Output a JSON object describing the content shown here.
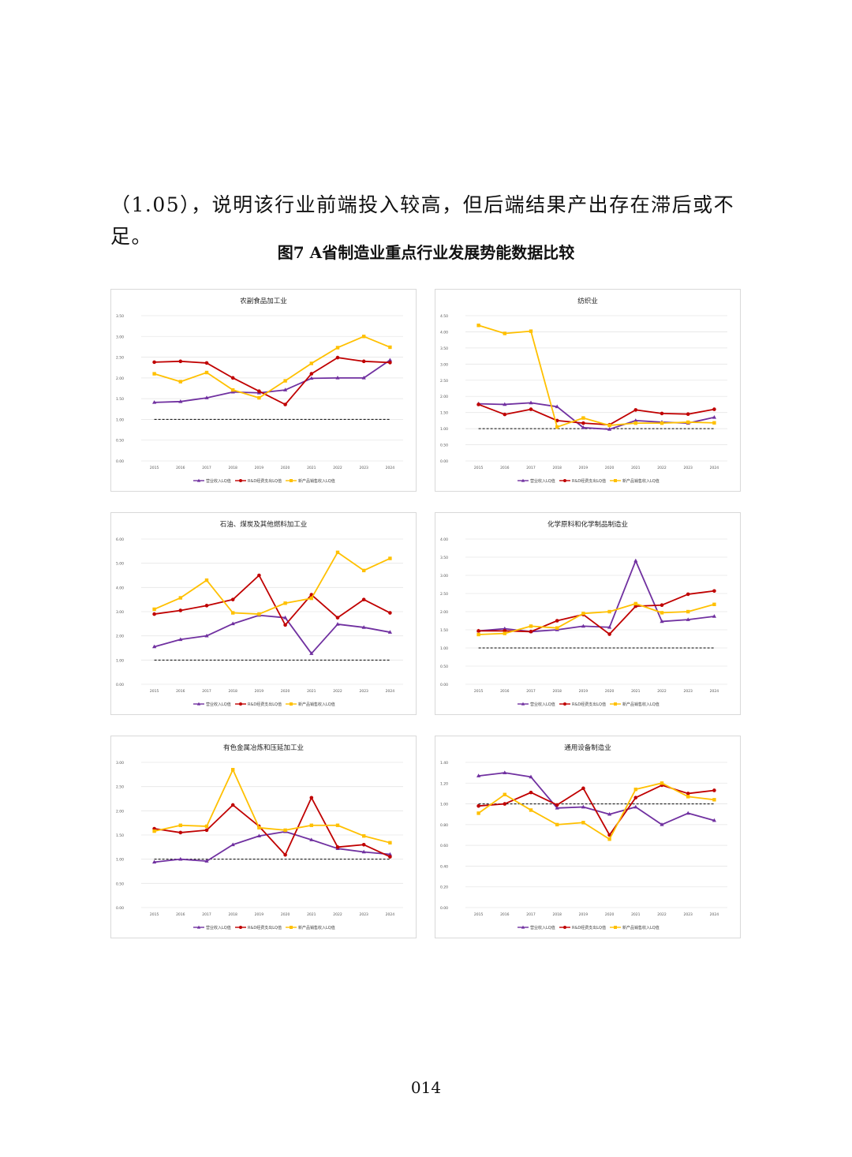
{
  "intro_text": "（1.05），说明该行业前端投入较高，但后端结果产出存在滞后或不足。",
  "figure_title": "图7 A省制造业重点行业发展势能数据比较",
  "page_number": "014",
  "series_colors": [
    "#7030a0",
    "#c00000",
    "#ffc000"
  ],
  "legend_labels": [
    "营业收入LQ值",
    "R&D经费支出LQ值",
    "新产品销售收入LQ值"
  ],
  "chart_data": [
    {
      "type": "line",
      "title": "农副食品加工业",
      "x": [
        "2015",
        "2016",
        "2017",
        "2018",
        "2019",
        "2020",
        "2021",
        "2022",
        "2023",
        "2024"
      ],
      "ylim": [
        0,
        3.5
      ],
      "yticks": [
        "0.00",
        "0.50",
        "1.00",
        "1.50",
        "2.00",
        "2.50",
        "3.00",
        "3.50"
      ],
      "reference_line": 1.0,
      "grid": true,
      "legend_position": "bottom",
      "series": [
        {
          "name": "营业收入LQ值",
          "values": [
            1.41,
            1.43,
            1.52,
            1.66,
            1.64,
            1.71,
            1.99,
            2.0,
            2.0,
            2.43
          ]
        },
        {
          "name": "R&D经费支出LQ值",
          "values": [
            2.38,
            2.4,
            2.36,
            2.0,
            1.68,
            1.36,
            2.1,
            2.49,
            2.4,
            2.37
          ]
        },
        {
          "name": "新产品销售收入LQ值",
          "values": [
            2.1,
            1.91,
            2.13,
            1.71,
            1.52,
            1.93,
            2.35,
            2.73,
            3.0,
            2.74
          ]
        }
      ]
    },
    {
      "type": "line",
      "title": "纺织业",
      "x": [
        "2015",
        "2016",
        "2017",
        "2018",
        "2019",
        "2020",
        "2021",
        "2022",
        "2023",
        "2024"
      ],
      "ylim": [
        0,
        4.5
      ],
      "yticks": [
        "0.00",
        "0.50",
        "1.00",
        "1.50",
        "2.00",
        "2.50",
        "3.00",
        "3.50",
        "4.00",
        "4.50"
      ],
      "reference_line": 1.0,
      "grid": true,
      "legend_position": "bottom",
      "series": [
        {
          "name": "营业收入LQ值",
          "values": [
            1.77,
            1.75,
            1.8,
            1.68,
            1.03,
            0.98,
            1.25,
            1.2,
            1.17,
            1.35
          ]
        },
        {
          "name": "R&D经费支出LQ值",
          "values": [
            1.75,
            1.44,
            1.6,
            1.25,
            1.17,
            1.12,
            1.58,
            1.47,
            1.45,
            1.6
          ]
        },
        {
          "name": "新产品销售收入LQ值",
          "values": [
            4.2,
            3.95,
            4.02,
            1.05,
            1.33,
            1.1,
            1.17,
            1.17,
            1.2,
            1.18
          ]
        }
      ]
    },
    {
      "type": "line",
      "title": "石油、煤炭及其他燃料加工业",
      "x": [
        "2015",
        "2016",
        "2017",
        "2018",
        "2019",
        "2020",
        "2021",
        "2022",
        "2023",
        "2024"
      ],
      "ylim": [
        0,
        6.0
      ],
      "yticks": [
        "0.00",
        "1.00",
        "2.00",
        "3.00",
        "4.00",
        "5.00",
        "6.00"
      ],
      "reference_line": 1.0,
      "grid": true,
      "legend_position": "bottom",
      "series": [
        {
          "name": "营业收入LQ值",
          "values": [
            1.55,
            1.85,
            2.0,
            2.5,
            2.85,
            2.75,
            1.27,
            2.48,
            2.35,
            2.15
          ]
        },
        {
          "name": "R&D经费支出LQ值",
          "values": [
            2.9,
            3.05,
            3.25,
            3.5,
            4.5,
            2.45,
            3.7,
            2.75,
            3.5,
            2.95
          ]
        },
        {
          "name": "新产品销售收入LQ值",
          "values": [
            3.1,
            3.57,
            4.3,
            2.95,
            2.9,
            3.35,
            3.55,
            5.45,
            4.7,
            5.2
          ]
        }
      ]
    },
    {
      "type": "line",
      "title": "化学原料和化学制品制造业",
      "x": [
        "2015",
        "2016",
        "2017",
        "2018",
        "2019",
        "2020",
        "2021",
        "2022",
        "2023",
        "2024"
      ],
      "ylim": [
        0,
        4.0
      ],
      "yticks": [
        "0.00",
        "0.50",
        "1.00",
        "1.50",
        "2.00",
        "2.50",
        "3.00",
        "3.50",
        "4.00"
      ],
      "reference_line": 1.0,
      "grid": true,
      "legend_position": "bottom",
      "series": [
        {
          "name": "营业收入LQ值",
          "values": [
            1.47,
            1.53,
            1.45,
            1.5,
            1.6,
            1.57,
            3.4,
            1.73,
            1.78,
            1.87
          ]
        },
        {
          "name": "R&D经费支出LQ值",
          "values": [
            1.47,
            1.47,
            1.45,
            1.75,
            1.92,
            1.38,
            2.15,
            2.18,
            2.48,
            2.57
          ]
        },
        {
          "name": "新产品销售收入LQ值",
          "values": [
            1.37,
            1.4,
            1.6,
            1.55,
            1.95,
            2.0,
            2.22,
            1.97,
            2.0,
            2.2
          ]
        }
      ]
    },
    {
      "type": "line",
      "title": "有色金属冶炼和压延加工业",
      "x": [
        "2015",
        "2016",
        "2017",
        "2018",
        "2019",
        "2020",
        "2021",
        "2022",
        "2023",
        "2024"
      ],
      "ylim": [
        0,
        3.0
      ],
      "yticks": [
        "0.00",
        "0.50",
        "1.00",
        "1.50",
        "2.00",
        "2.50",
        "3.00"
      ],
      "reference_line": 1.0,
      "grid": true,
      "legend_position": "bottom",
      "series": [
        {
          "name": "营业收入LQ值",
          "values": [
            0.94,
            1.0,
            0.96,
            1.3,
            1.48,
            1.57,
            1.4,
            1.22,
            1.15,
            1.1
          ]
        },
        {
          "name": "R&D经费支出LQ值",
          "values": [
            1.63,
            1.55,
            1.6,
            2.12,
            1.68,
            1.09,
            2.27,
            1.25,
            1.3,
            1.05
          ]
        },
        {
          "name": "新产品销售收入LQ值",
          "values": [
            1.58,
            1.7,
            1.68,
            2.85,
            1.65,
            1.6,
            1.7,
            1.7,
            1.48,
            1.34
          ]
        }
      ]
    },
    {
      "type": "line",
      "title": "通用设备制造业",
      "x": [
        "2015",
        "2016",
        "2017",
        "2018",
        "2019",
        "2020",
        "2021",
        "2022",
        "2023",
        "2024"
      ],
      "ylim": [
        0,
        1.4
      ],
      "yticks": [
        "0.00",
        "0.20",
        "0.40",
        "0.60",
        "0.80",
        "1.00",
        "1.20",
        "1.40"
      ],
      "reference_line": 1.0,
      "grid": true,
      "legend_position": "bottom",
      "series": [
        {
          "name": "营业收入LQ值",
          "values": [
            1.27,
            1.3,
            1.26,
            0.96,
            0.97,
            0.9,
            0.97,
            0.8,
            0.91,
            0.84
          ]
        },
        {
          "name": "R&D经费支出LQ值",
          "values": [
            0.98,
            1.0,
            1.11,
            0.99,
            1.15,
            0.7,
            1.06,
            1.18,
            1.1,
            1.13
          ]
        },
        {
          "name": "新产品销售收入LQ值",
          "values": [
            0.91,
            1.09,
            0.94,
            0.8,
            0.82,
            0.66,
            1.14,
            1.2,
            1.07,
            1.04
          ]
        }
      ]
    }
  ]
}
